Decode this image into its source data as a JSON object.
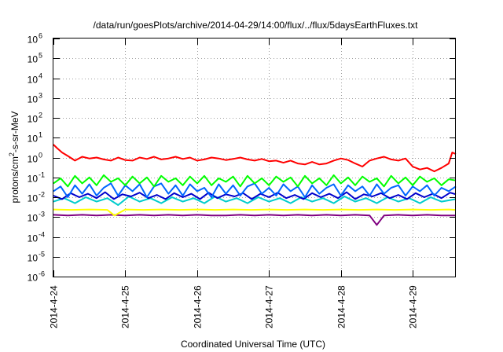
{
  "chart_data": {
    "type": "line",
    "title": "/data/run/goesPlots/archive/2014-04-29/14:00/flux/../flux/5daysEarthFluxes.txt",
    "xlabel": "Coordinated Universal Time (UTC)",
    "ylabel": {
      "base": "protons/cm",
      "sup": "2",
      "rest": "-s-sr-MeV"
    },
    "yscale": "log",
    "ylim": [
      1e-06,
      1000000.0
    ],
    "xlim": [
      0,
      5.6
    ],
    "x_unit": "days since 2014-4-24 00:00",
    "grid": true,
    "xticks": [
      {
        "x": 0,
        "label": "2014-4-24"
      },
      {
        "x": 1,
        "label": "2014-4-25"
      },
      {
        "x": 2,
        "label": "2014-4-26"
      },
      {
        "x": 3,
        "label": "2014-4-27"
      },
      {
        "x": 4,
        "label": "2014-4-28"
      },
      {
        "x": 5,
        "label": "2014-4-29"
      }
    ],
    "yticks": [
      {
        "exp": -6,
        "label": "10",
        "sup": "-6"
      },
      {
        "exp": -5,
        "label": "10",
        "sup": "-5"
      },
      {
        "exp": -4,
        "label": "10",
        "sup": "-4"
      },
      {
        "exp": -3,
        "label": "10",
        "sup": "-3"
      },
      {
        "exp": -2,
        "label": "10",
        "sup": "-2"
      },
      {
        "exp": -1,
        "label": "10",
        "sup": "-1"
      },
      {
        "exp": 0,
        "label": "10",
        "sup": "0"
      },
      {
        "exp": 1,
        "label": "10",
        "sup": "1"
      },
      {
        "exp": 2,
        "label": "10",
        "sup": "2"
      },
      {
        "exp": 3,
        "label": "10",
        "sup": "3"
      },
      {
        "exp": 4,
        "label": "10",
        "sup": "4"
      },
      {
        "exp": 5,
        "label": "10",
        "sup": "5"
      },
      {
        "exp": 6,
        "label": "10",
        "sup": "6"
      }
    ],
    "series": [
      {
        "color": "#800080",
        "x": [
          0,
          0.2,
          0.4,
          0.6,
          0.8,
          1.0,
          1.2,
          1.4,
          1.6,
          1.8,
          2.0,
          2.2,
          2.4,
          2.6,
          2.8,
          3.0,
          3.2,
          3.4,
          3.6,
          3.8,
          4.0,
          4.2,
          4.4,
          4.5,
          4.6,
          4.8,
          5.0,
          5.2,
          5.4,
          5.6
        ],
        "y": [
          0.0013,
          0.0012,
          0.0013,
          0.0012,
          0.0013,
          0.0012,
          0.0013,
          0.0012,
          0.0013,
          0.0012,
          0.0013,
          0.0012,
          0.0012,
          0.0013,
          0.0012,
          0.0013,
          0.0012,
          0.0013,
          0.0012,
          0.0013,
          0.0012,
          0.0013,
          0.0012,
          0.0004,
          0.0012,
          0.0013,
          0.0012,
          0.0013,
          0.0012,
          0.0012
        ]
      },
      {
        "color": "#ffff00",
        "x": [
          0,
          0.25,
          0.5,
          0.75,
          0.85,
          1.0,
          1.25,
          1.5,
          1.75,
          2.0,
          2.25,
          2.5,
          2.75,
          3.0,
          3.25,
          3.5,
          3.75,
          4.0,
          4.25,
          4.5,
          4.75,
          5.0,
          5.25,
          5.5,
          5.6
        ],
        "y": [
          0.0024,
          0.0023,
          0.0024,
          0.0023,
          0.0012,
          0.0024,
          0.0023,
          0.0024,
          0.0023,
          0.0024,
          0.0023,
          0.0024,
          0.0023,
          0.0024,
          0.0023,
          0.0024,
          0.0023,
          0.0024,
          0.0023,
          0.0024,
          0.0023,
          0.0024,
          0.0023,
          0.0024,
          0.0023
        ]
      },
      {
        "color": "#00cccc",
        "x": [
          0,
          0.15,
          0.3,
          0.45,
          0.6,
          0.75,
          0.9,
          1.05,
          1.2,
          1.35,
          1.5,
          1.65,
          1.8,
          1.95,
          2.1,
          2.25,
          2.4,
          2.55,
          2.7,
          2.85,
          3.0,
          3.15,
          3.3,
          3.45,
          3.6,
          3.75,
          3.9,
          4.05,
          4.2,
          4.35,
          4.5,
          4.65,
          4.8,
          4.95,
          5.1,
          5.25,
          5.4,
          5.6
        ],
        "y": [
          0.006,
          0.009,
          0.005,
          0.01,
          0.006,
          0.009,
          0.004,
          0.011,
          0.006,
          0.009,
          0.005,
          0.01,
          0.006,
          0.009,
          0.005,
          0.011,
          0.006,
          0.009,
          0.005,
          0.01,
          0.006,
          0.009,
          0.005,
          0.01,
          0.006,
          0.009,
          0.005,
          0.011,
          0.006,
          0.009,
          0.005,
          0.01,
          0.006,
          0.009,
          0.005,
          0.01,
          0.006,
          0.008
        ]
      },
      {
        "color": "#0000cc",
        "x": [
          0,
          0.12,
          0.24,
          0.36,
          0.48,
          0.6,
          0.72,
          0.84,
          0.96,
          1.08,
          1.2,
          1.32,
          1.44,
          1.56,
          1.68,
          1.8,
          1.92,
          2.04,
          2.16,
          2.28,
          2.4,
          2.52,
          2.64,
          2.76,
          2.88,
          3.0,
          3.12,
          3.24,
          3.36,
          3.48,
          3.6,
          3.72,
          3.84,
          3.96,
          4.08,
          4.2,
          4.32,
          4.44,
          4.56,
          4.68,
          4.8,
          4.92,
          5.04,
          5.16,
          5.28,
          5.4,
          5.52,
          5.6
        ],
        "y": [
          0.012,
          0.008,
          0.016,
          0.01,
          0.015,
          0.009,
          0.018,
          0.008,
          0.014,
          0.011,
          0.017,
          0.009,
          0.013,
          0.008,
          0.016,
          0.01,
          0.015,
          0.008,
          0.017,
          0.009,
          0.014,
          0.011,
          0.016,
          0.008,
          0.015,
          0.01,
          0.017,
          0.009,
          0.013,
          0.008,
          0.016,
          0.01,
          0.015,
          0.009,
          0.018,
          0.008,
          0.014,
          0.011,
          0.016,
          0.009,
          0.013,
          0.008,
          0.016,
          0.01,
          0.015,
          0.009,
          0.017,
          0.014
        ]
      },
      {
        "color": "#0066ff",
        "x": [
          0,
          0.1,
          0.2,
          0.3,
          0.4,
          0.5,
          0.6,
          0.7,
          0.8,
          0.9,
          1.0,
          1.1,
          1.2,
          1.3,
          1.4,
          1.5,
          1.6,
          1.7,
          1.8,
          1.9,
          2.0,
          2.1,
          2.2,
          2.3,
          2.4,
          2.5,
          2.6,
          2.7,
          2.8,
          2.9,
          3.0,
          3.1,
          3.2,
          3.3,
          3.4,
          3.5,
          3.6,
          3.7,
          3.8,
          3.9,
          4.0,
          4.1,
          4.2,
          4.3,
          4.4,
          4.5,
          4.6,
          4.7,
          4.8,
          4.9,
          5.0,
          5.1,
          5.2,
          5.3,
          5.4,
          5.5,
          5.6
        ],
        "y": [
          0.02,
          0.035,
          0.01,
          0.04,
          0.015,
          0.045,
          0.012,
          0.03,
          0.05,
          0.012,
          0.04,
          0.02,
          0.045,
          0.01,
          0.035,
          0.05,
          0.015,
          0.04,
          0.012,
          0.045,
          0.02,
          0.03,
          0.01,
          0.045,
          0.015,
          0.04,
          0.012,
          0.035,
          0.05,
          0.015,
          0.03,
          0.012,
          0.045,
          0.02,
          0.035,
          0.01,
          0.04,
          0.015,
          0.03,
          0.045,
          0.012,
          0.04,
          0.02,
          0.035,
          0.012,
          0.045,
          0.015,
          0.03,
          0.04,
          0.012,
          0.035,
          0.02,
          0.04,
          0.012,
          0.03,
          0.02,
          0.035
        ]
      },
      {
        "color": "#00ff00",
        "x": [
          0,
          0.1,
          0.2,
          0.3,
          0.4,
          0.5,
          0.6,
          0.7,
          0.8,
          0.9,
          1.0,
          1.1,
          1.2,
          1.3,
          1.4,
          1.5,
          1.6,
          1.7,
          1.8,
          1.9,
          2.0,
          2.1,
          2.2,
          2.3,
          2.4,
          2.5,
          2.6,
          2.7,
          2.8,
          2.9,
          3.0,
          3.1,
          3.2,
          3.3,
          3.4,
          3.5,
          3.6,
          3.7,
          3.8,
          3.9,
          4.0,
          4.1,
          4.2,
          4.3,
          4.4,
          4.5,
          4.6,
          4.7,
          4.8,
          4.9,
          5.0,
          5.1,
          5.2,
          5.3,
          5.4,
          5.5,
          5.6
        ],
        "y": [
          0.05,
          0.09,
          0.035,
          0.12,
          0.05,
          0.1,
          0.04,
          0.13,
          0.06,
          0.09,
          0.04,
          0.11,
          0.05,
          0.1,
          0.035,
          0.12,
          0.06,
          0.09,
          0.04,
          0.11,
          0.05,
          0.12,
          0.04,
          0.09,
          0.06,
          0.11,
          0.035,
          0.12,
          0.05,
          0.09,
          0.04,
          0.11,
          0.06,
          0.1,
          0.035,
          0.12,
          0.05,
          0.09,
          0.04,
          0.13,
          0.05,
          0.1,
          0.04,
          0.11,
          0.06,
          0.09,
          0.035,
          0.12,
          0.05,
          0.1,
          0.04,
          0.11,
          0.06,
          0.09,
          0.04,
          0.08,
          0.07
        ]
      },
      {
        "color": "#ff0000",
        "x": [
          0,
          0.05,
          0.12,
          0.2,
          0.3,
          0.4,
          0.5,
          0.6,
          0.7,
          0.8,
          0.9,
          1.0,
          1.1,
          1.2,
          1.3,
          1.4,
          1.5,
          1.6,
          1.7,
          1.8,
          1.9,
          2.0,
          2.1,
          2.2,
          2.3,
          2.4,
          2.5,
          2.6,
          2.7,
          2.8,
          2.9,
          3.0,
          3.1,
          3.2,
          3.3,
          3.4,
          3.5,
          3.6,
          3.7,
          3.8,
          3.9,
          4.0,
          4.1,
          4.2,
          4.3,
          4.4,
          4.5,
          4.6,
          4.7,
          4.8,
          4.9,
          5.0,
          5.1,
          5.2,
          5.3,
          5.4,
          5.5,
          5.55,
          5.6
        ],
        "y": [
          4.5,
          3.0,
          1.8,
          1.2,
          0.7,
          1.1,
          0.9,
          1.0,
          0.8,
          0.7,
          1.0,
          0.75,
          0.7,
          1.0,
          0.85,
          1.1,
          0.8,
          0.9,
          1.1,
          0.85,
          1.0,
          0.7,
          0.8,
          1.0,
          0.9,
          0.75,
          0.85,
          1.0,
          0.8,
          0.7,
          0.85,
          0.65,
          0.7,
          0.55,
          0.7,
          0.5,
          0.45,
          0.6,
          0.45,
          0.5,
          0.7,
          0.9,
          0.75,
          0.5,
          0.35,
          0.7,
          0.9,
          1.1,
          0.8,
          0.7,
          0.9,
          0.35,
          0.25,
          0.3,
          0.2,
          0.3,
          0.5,
          1.8,
          1.5
        ]
      }
    ]
  }
}
